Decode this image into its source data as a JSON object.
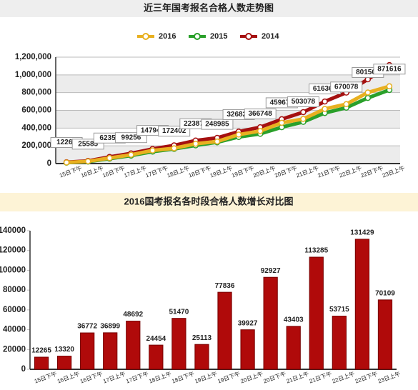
{
  "chart_data": [
    {
      "type": "line",
      "title": "近三年国考报名合格人数走势图",
      "categories": [
        "15日下午",
        "16日上午",
        "16日下午",
        "17日上午",
        "17日下午",
        "18日上午",
        "18日下午",
        "19日上午",
        "19日下午",
        "20日上午",
        "20日下午",
        "21日上午",
        "21日下午",
        "22日上午",
        "22日下午",
        "23日上午"
      ],
      "series": [
        {
          "name": "2016",
          "color": "#e8b020",
          "values": [
            12265,
            25585,
            62357,
            99256,
            147948,
            172402,
            223872,
            248985,
            326821,
            366748,
            459675,
            503078,
            616363,
            670078,
            801507,
            871616
          ]
        },
        {
          "name": "2015",
          "color": "#2aa02a",
          "values": [
            10000,
            22000,
            55000,
            90000,
            135000,
            165000,
            205000,
            240000,
            300000,
            335000,
            410000,
            470000,
            570000,
            630000,
            740000,
            830000
          ]
        },
        {
          "name": "2014",
          "color": "#a51010",
          "values": [
            15000,
            30000,
            75000,
            115000,
            165000,
            205000,
            260000,
            290000,
            360000,
            410000,
            500000,
            580000,
            700000,
            800000,
            950000,
            1110000
          ]
        }
      ],
      "ylim": [
        0,
        1200000
      ],
      "yticks": [
        0,
        {
          "value": 200000,
          "label": "200,000"
        },
        {
          "value": 400000,
          "label": "400,000"
        },
        {
          "value": 600000,
          "label": "600,000"
        },
        {
          "value": 800000,
          "label": "800,000"
        },
        {
          "value": 1000000,
          "label": "1,000,000"
        },
        {
          "value": 1200000,
          "label": "1,200,000"
        }
      ],
      "grid": true,
      "legend": "top"
    },
    {
      "type": "bar",
      "title": "2016国考报名各时段合格人数增长对比图",
      "categories": [
        "15日下午",
        "16日上午",
        "16日下午",
        "17日上午",
        "17日下午",
        "18日上午",
        "18日下午",
        "19日上午",
        "19日下午",
        "20日上午",
        "20日下午",
        "21日上午",
        "21日下午",
        "22日上午",
        "22日下午",
        "23日上午"
      ],
      "values": [
        12265,
        13320,
        36772,
        36899,
        48692,
        24454,
        51470,
        25113,
        77836,
        39927,
        92927,
        43403,
        113285,
        53715,
        131429,
        70109
      ],
      "color": "#b00a0a",
      "ylim": [
        0,
        140000
      ],
      "yticks": [
        0,
        20000,
        40000,
        60000,
        80000,
        100000,
        120000,
        140000
      ],
      "grid": false
    }
  ]
}
